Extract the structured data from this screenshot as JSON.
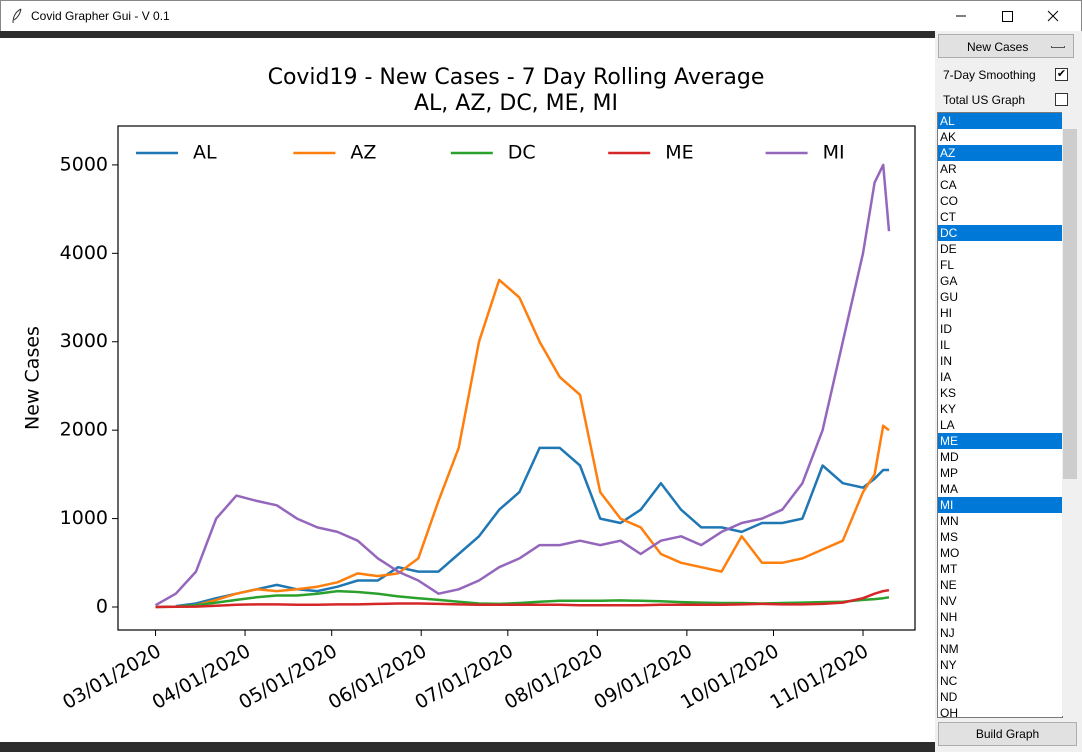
{
  "window": {
    "title": "Covid Grapher Gui - V 0.1"
  },
  "controls": {
    "dropdown": {
      "value": "New Cases"
    },
    "checkboxes": [
      {
        "label": "7-Day Smoothing",
        "checked": true
      },
      {
        "label": "Total US Graph",
        "checked": false
      }
    ],
    "states": [
      {
        "label": "AL",
        "selected": true
      },
      {
        "label": "AK",
        "selected": false
      },
      {
        "label": "AZ",
        "selected": true
      },
      {
        "label": "AR",
        "selected": false
      },
      {
        "label": "CA",
        "selected": false
      },
      {
        "label": "CO",
        "selected": false
      },
      {
        "label": "CT",
        "selected": false
      },
      {
        "label": "DC",
        "selected": true
      },
      {
        "label": "DE",
        "selected": false
      },
      {
        "label": "FL",
        "selected": false
      },
      {
        "label": "GA",
        "selected": false
      },
      {
        "label": "GU",
        "selected": false
      },
      {
        "label": "HI",
        "selected": false
      },
      {
        "label": "ID",
        "selected": false
      },
      {
        "label": "IL",
        "selected": false
      },
      {
        "label": "IN",
        "selected": false
      },
      {
        "label": "IA",
        "selected": false
      },
      {
        "label": "KS",
        "selected": false
      },
      {
        "label": "KY",
        "selected": false
      },
      {
        "label": "LA",
        "selected": false
      },
      {
        "label": "ME",
        "selected": true
      },
      {
        "label": "MD",
        "selected": false
      },
      {
        "label": "MP",
        "selected": false
      },
      {
        "label": "MA",
        "selected": false
      },
      {
        "label": "MI",
        "selected": true
      },
      {
        "label": "MN",
        "selected": false
      },
      {
        "label": "MS",
        "selected": false
      },
      {
        "label": "MO",
        "selected": false
      },
      {
        "label": "MT",
        "selected": false
      },
      {
        "label": "NE",
        "selected": false
      },
      {
        "label": "NV",
        "selected": false
      },
      {
        "label": "NH",
        "selected": false
      },
      {
        "label": "NJ",
        "selected": false
      },
      {
        "label": "NM",
        "selected": false
      },
      {
        "label": "NY",
        "selected": false
      },
      {
        "label": "NC",
        "selected": false
      },
      {
        "label": "ND",
        "selected": false
      },
      {
        "label": "OH",
        "selected": false
      }
    ],
    "button": "Build Graph"
  },
  "chart_data": {
    "type": "line",
    "title": [
      "Covid19 - New Cases - 7 Day Rolling Average",
      "AL, AZ, DC, ME, MI"
    ],
    "y_label": "New Cases",
    "legend": "upper center",
    "x": [
      "03/01/2020",
      "03/08/2020",
      "03/15/2020",
      "03/22/2020",
      "03/29/2020",
      "04/05/2020",
      "04/12/2020",
      "04/19/2020",
      "04/26/2020",
      "05/03/2020",
      "05/10/2020",
      "05/17/2020",
      "05/24/2020",
      "05/31/2020",
      "06/07/2020",
      "06/14/2020",
      "06/21/2020",
      "06/28/2020",
      "07/05/2020",
      "07/12/2020",
      "07/19/2020",
      "07/26/2020",
      "08/02/2020",
      "08/09/2020",
      "08/16/2020",
      "08/23/2020",
      "08/30/2020",
      "09/06/2020",
      "09/13/2020",
      "09/20/2020",
      "09/27/2020",
      "10/04/2020",
      "10/11/2020",
      "10/18/2020",
      "10/25/2020",
      "11/01/2020",
      "11/05/2020",
      "11/08/2020",
      "11/10/2020"
    ],
    "series": [
      {
        "name": "AL",
        "color": "#1f77b4",
        "values": [
          null,
          10,
          40,
          100,
          150,
          200,
          250,
          200,
          180,
          230,
          300,
          300,
          450,
          400,
          400,
          600,
          800,
          1100,
          1300,
          1800,
          1800,
          1600,
          1000,
          950,
          1100,
          1400,
          1100,
          900,
          900,
          850,
          950,
          950,
          1000,
          1600,
          1400,
          1350,
          1450,
          1550,
          1550
        ]
      },
      {
        "name": "AZ",
        "color": "#ff7f0e",
        "values": [
          null,
          5,
          20,
          80,
          150,
          200,
          180,
          200,
          230,
          280,
          380,
          350,
          380,
          550,
          1200,
          1800,
          3000,
          3700,
          3500,
          3000,
          2600,
          2400,
          1300,
          1000,
          900,
          600,
          500,
          450,
          400,
          800,
          500,
          500,
          550,
          650,
          750,
          1300,
          1500,
          2050,
          2000
        ]
      },
      {
        "name": "DC",
        "color": "#2ca02c",
        "values": [
          0,
          5,
          20,
          50,
          80,
          110,
          130,
          130,
          150,
          180,
          170,
          150,
          120,
          100,
          80,
          60,
          40,
          35,
          45,
          60,
          70,
          70,
          70,
          75,
          70,
          65,
          55,
          50,
          45,
          45,
          40,
          45,
          50,
          55,
          60,
          80,
          90,
          100,
          110
        ]
      },
      {
        "name": "ME",
        "color": "#d62728",
        "values": [
          0,
          2,
          5,
          15,
          25,
          30,
          30,
          25,
          25,
          30,
          30,
          35,
          40,
          40,
          35,
          30,
          25,
          25,
          25,
          25,
          25,
          20,
          20,
          20,
          20,
          25,
          25,
          25,
          25,
          30,
          35,
          30,
          30,
          35,
          50,
          100,
          150,
          180,
          190
        ]
      },
      {
        "name": "MI",
        "color": "#9467bd",
        "values": [
          20,
          150,
          400,
          1000,
          1260,
          1200,
          1150,
          1000,
          900,
          850,
          750,
          550,
          400,
          300,
          150,
          200,
          300,
          450,
          550,
          700,
          700,
          750,
          700,
          750,
          600,
          750,
          800,
          700,
          850,
          950,
          1000,
          1100,
          1400,
          2000,
          3000,
          4000,
          4800,
          5000,
          4250
        ]
      }
    ],
    "xlim": [
      "02/17/2020",
      "11/19/2020"
    ],
    "xticks": [
      "03/01/2020",
      "04/01/2020",
      "05/01/2020",
      "06/01/2020",
      "07/01/2020",
      "08/01/2020",
      "09/01/2020",
      "10/01/2020",
      "11/01/2020"
    ],
    "ylim": [
      -260,
      5440
    ],
    "yticks": [
      0,
      1000,
      2000,
      3000,
      4000,
      5000
    ]
  }
}
